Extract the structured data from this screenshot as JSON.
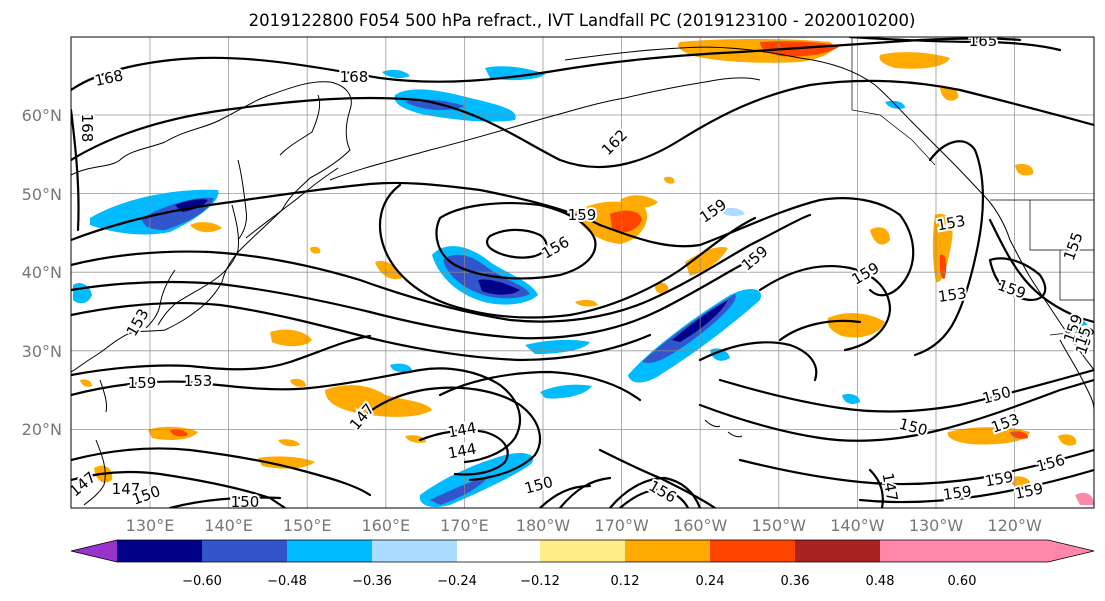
{
  "title": "2019122800 F054 500 hPa refract., IVT Landfall PC (2019123100 - 2020010200)",
  "lat_labels": [
    "60°N",
    "50°N",
    "40°N",
    "30°N",
    "20°N"
  ],
  "lon_labels": [
    "130°E",
    "140°E",
    "150°E",
    "160°E",
    "170°E",
    "180°W",
    "170°W",
    "160°W",
    "150°W",
    "140°W",
    "130°W",
    "120°W"
  ],
  "colorbar": {
    "ticks": [
      "−0.60",
      "−0.48",
      "−0.36",
      "−0.24",
      "−0.12",
      "0.12",
      "0.24",
      "0.36",
      "0.48",
      "0.60"
    ],
    "colors": [
      "#9933cc",
      "#000088",
      "#3355cc",
      "#00bbff",
      "#aaddff",
      "#ffffff",
      "#ffee88",
      "#ffaa00",
      "#ff4400",
      "#aa2222",
      "#ff88aa"
    ]
  },
  "contour_labels": [
    "168",
    "168",
    "168",
    "162",
    "165",
    "159",
    "156",
    "159",
    "159",
    "159",
    "153",
    "153",
    "159",
    "155",
    "159",
    "153",
    "147",
    "150",
    "150",
    "153",
    "156",
    "159",
    "159",
    "159",
    "147",
    "156",
    "150",
    "144",
    "144",
    "147",
    "150",
    "150",
    "147",
    "159",
    "153",
    "150",
    "15"
  ]
}
